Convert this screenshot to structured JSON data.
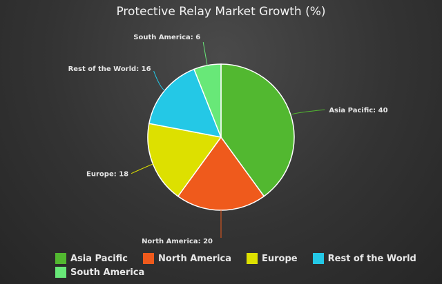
{
  "chart_data": {
    "type": "pie",
    "title": "Protective Relay Market Growth (%)",
    "slices": [
      {
        "name": "Asia Pacific",
        "value": 40,
        "color": "#52b830"
      },
      {
        "name": "North America",
        "value": 20,
        "color": "#ef5a1c"
      },
      {
        "name": "Europe",
        "value": 18,
        "color": "#dde000"
      },
      {
        "name": "Rest of the World",
        "value": 16,
        "color": "#24c8e6"
      },
      {
        "name": "South America",
        "value": 6,
        "color": "#68e878"
      }
    ],
    "legend": "bottom",
    "label_separator": ": "
  }
}
